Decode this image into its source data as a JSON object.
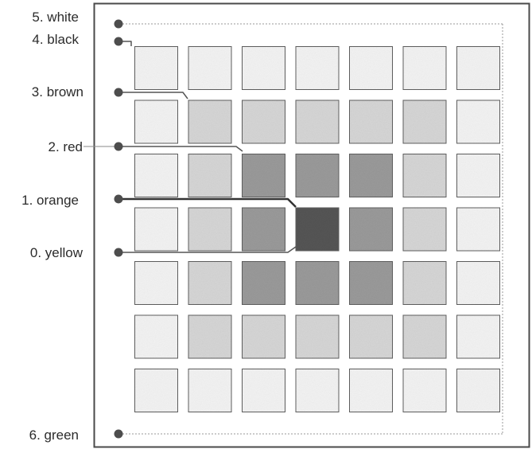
{
  "labels": [
    {
      "id": "white",
      "text": "5. white"
    },
    {
      "id": "black",
      "text": "4. black"
    },
    {
      "id": "brown",
      "text": "3. brown"
    },
    {
      "id": "red",
      "text": "2. red"
    },
    {
      "id": "orange",
      "text": "1. orange"
    },
    {
      "id": "yellow",
      "text": "0. yellow"
    },
    {
      "id": "green",
      "text": "6. green"
    }
  ],
  "colors": {
    "level0": "#f3f3f3",
    "level1": "#d6d6d6",
    "level2": "#9a9a9a",
    "level3": "#555555",
    "cell_border": "#5e5e5e",
    "frame": "#4a4a4a",
    "dotted": "#9a9a9a",
    "marker": "#4d4d4d"
  },
  "grid": {
    "levels": [
      [
        0,
        0,
        0,
        0,
        0,
        0,
        0
      ],
      [
        0,
        1,
        1,
        1,
        1,
        1,
        0
      ],
      [
        0,
        1,
        2,
        2,
        2,
        1,
        0
      ],
      [
        0,
        1,
        2,
        3,
        2,
        1,
        0
      ],
      [
        0,
        1,
        2,
        2,
        2,
        1,
        0
      ],
      [
        0,
        1,
        1,
        1,
        1,
        1,
        0
      ],
      [
        0,
        0,
        0,
        0,
        0,
        0,
        0
      ]
    ]
  }
}
